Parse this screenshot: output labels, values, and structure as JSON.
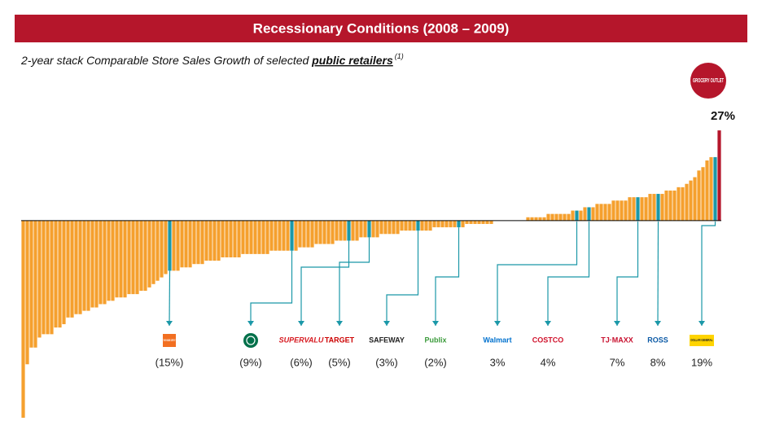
{
  "chart_data": {
    "type": "bar",
    "title": "Recessionary Conditions (2008 – 2009)",
    "subtitle": "2-year stack Comparable Store Sales Growth of selected ",
    "subtitle_emphasis": "public retailers",
    "footnote_marker": "(1)",
    "values": [
      -59,
      -43,
      -38,
      -38,
      -35,
      -34,
      -34,
      -34,
      -32,
      -32,
      -31,
      -29,
      -29,
      -28,
      -28,
      -27,
      -27,
      -26,
      -26,
      -25,
      -25,
      -24,
      -24,
      -23,
      -23,
      -23,
      -22,
      -22,
      -22,
      -21,
      -21,
      -20,
      -19,
      -18,
      -17,
      -16,
      -15,
      -15,
      -15,
      -14,
      -14,
      -14,
      -13,
      -13,
      -13,
      -12,
      -12,
      -12,
      -12,
      -11,
      -11,
      -11,
      -11,
      -11,
      -10,
      -10,
      -10,
      -10,
      -10,
      -10,
      -10,
      -9,
      -9,
      -9,
      -9,
      -9,
      -9,
      -9,
      -8,
      -8,
      -8,
      -8,
      -7,
      -7,
      -7,
      -7,
      -7,
      -6,
      -6,
      -6,
      -6,
      -6,
      -6,
      -5,
      -5,
      -5,
      -5,
      -5,
      -4,
      -4,
      -4,
      -4,
      -4,
      -3,
      -3,
      -3,
      -3,
      -3,
      -3,
      -3,
      -3,
      -2,
      -2,
      -2,
      -2,
      -2,
      -2,
      -2,
      -2,
      -1,
      -1,
      -1,
      -1,
      -1,
      -1,
      -1,
      0,
      0,
      0,
      0,
      0,
      0,
      0,
      0,
      1,
      1,
      1,
      1,
      1,
      2,
      2,
      2,
      2,
      2,
      2,
      3,
      3,
      3,
      4,
      4,
      4,
      5,
      5,
      5,
      5,
      6,
      6,
      6,
      6,
      7,
      7,
      7,
      7,
      7,
      8,
      8,
      8,
      8,
      9,
      9,
      9,
      10,
      10,
      11,
      12,
      13,
      15,
      16,
      18,
      19,
      19,
      27
    ],
    "value_labels": [
      null,
      null,
      null,
      null,
      null,
      null,
      null,
      null,
      null,
      null,
      null,
      null,
      null,
      null,
      null,
      null,
      null,
      null,
      null,
      null,
      null,
      null,
      null,
      null,
      null,
      null,
      null,
      null,
      null,
      null,
      null,
      null,
      null,
      null,
      null,
      null,
      "(15%)",
      null,
      null,
      null,
      null,
      null,
      null,
      null,
      null,
      null,
      null,
      null,
      null,
      null,
      null,
      null,
      null,
      null,
      null,
      null,
      null,
      null,
      null,
      null,
      null,
      null,
      null,
      null,
      null,
      null,
      "(9%)",
      null,
      null,
      null,
      null,
      null,
      null,
      null,
      null,
      null,
      null,
      null,
      null,
      null,
      "(6%)",
      null,
      null,
      null,
      null,
      "(5%)",
      null,
      null,
      null,
      null,
      null,
      null,
      null,
      null,
      null,
      null,
      null,
      "(3%)",
      null,
      null,
      null,
      null,
      null,
      null,
      null,
      null,
      null,
      "(2%)",
      null,
      null,
      null,
      null,
      null,
      null,
      null,
      null,
      null,
      null,
      null,
      null,
      null,
      null,
      null,
      null,
      null,
      null,
      null,
      null,
      null,
      null,
      null,
      null,
      null,
      null,
      null,
      null,
      "3%",
      null,
      null,
      "4%",
      null,
      null,
      null,
      null,
      null,
      null,
      null,
      null,
      null,
      null,
      null,
      "7%",
      null,
      null,
      null,
      null,
      "8%",
      null,
      null,
      null,
      null,
      null,
      null,
      null,
      null,
      null,
      null,
      null,
      null,
      null,
      "19%",
      "27%"
    ],
    "logos": [
      null,
      null,
      null,
      null,
      null,
      null,
      null,
      null,
      null,
      null,
      null,
      null,
      null,
      null,
      null,
      null,
      null,
      null,
      null,
      null,
      null,
      null,
      null,
      null,
      null,
      null,
      null,
      null,
      null,
      null,
      null,
      null,
      null,
      null,
      null,
      null,
      "THE HOME DEPOT",
      null,
      null,
      null,
      null,
      null,
      null,
      null,
      null,
      null,
      null,
      null,
      null,
      null,
      null,
      null,
      null,
      null,
      null,
      null,
      null,
      null,
      null,
      null,
      null,
      null,
      null,
      null,
      null,
      null,
      null,
      null,
      null,
      null,
      null,
      null,
      null,
      null,
      null,
      null,
      null,
      null,
      null,
      null,
      "SUPERVALU",
      null,
      null,
      null,
      null,
      "TARGET",
      null,
      null,
      null,
      null,
      null,
      null,
      null,
      null,
      null,
      null,
      null,
      "SAFEWAY",
      null,
      null,
      null,
      null,
      null,
      null,
      null,
      null,
      null,
      "Publix",
      null,
      null,
      null,
      null,
      null,
      null,
      null,
      null,
      null,
      null,
      null,
      null,
      null,
      null,
      null,
      null,
      null,
      null,
      null,
      null,
      null,
      null,
      null,
      null,
      null,
      null,
      null,
      null,
      "Walmart",
      null,
      null,
      "COSTCO",
      null,
      null,
      null,
      null,
      null,
      null,
      null,
      null,
      null,
      null,
      null,
      "TJ·MAXX",
      null,
      null,
      null,
      null,
      "ROSS",
      null,
      null,
      null,
      null,
      null,
      null,
      null,
      null,
      null,
      null,
      null,
      null,
      null,
      "DOLLAR GENERAL",
      "GROCERY OUTLET"
    ],
    "color": "#f5a02e",
    "highlight_color": "#1b98a8",
    "accent_color": "#b5162b",
    "ylim": [
      -60,
      28
    ]
  }
}
